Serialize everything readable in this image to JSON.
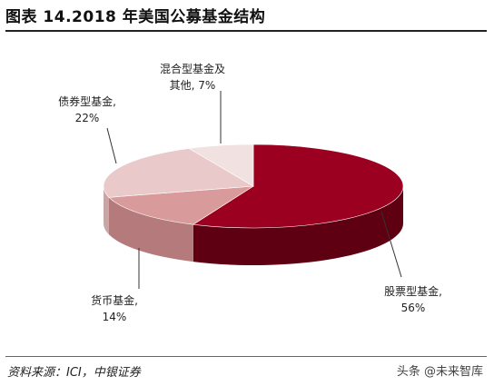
{
  "header": {
    "title": "图表 14.2018 年美国公募基金结构"
  },
  "footer": {
    "source": "资料来源：ICI，中银证券",
    "watermark": "头条 @未来智库"
  },
  "chart_data": {
    "type": "pie",
    "title": "",
    "three_d": true,
    "slices": [
      {
        "label": "股票型基金,",
        "value": 56,
        "value_text": "56%",
        "color": "#9c0021",
        "side_color": "#5e0011"
      },
      {
        "label": "货币基金,",
        "value": 14,
        "value_text": "14%",
        "color": "#d99a9c",
        "side_color": "#b47a7c"
      },
      {
        "label": "债券型基金,",
        "value": 22,
        "value_text": "22%",
        "color": "#e9c9c9",
        "side_color": "#c9a6a6"
      },
      {
        "label": "混合型基金及其他,",
        "label_lines": [
          "混合型基金及",
          "其他, 7%"
        ],
        "value": 7,
        "value_text": "7%",
        "color": "#f1e1e1",
        "side_color": "#d8c2c2"
      }
    ]
  }
}
